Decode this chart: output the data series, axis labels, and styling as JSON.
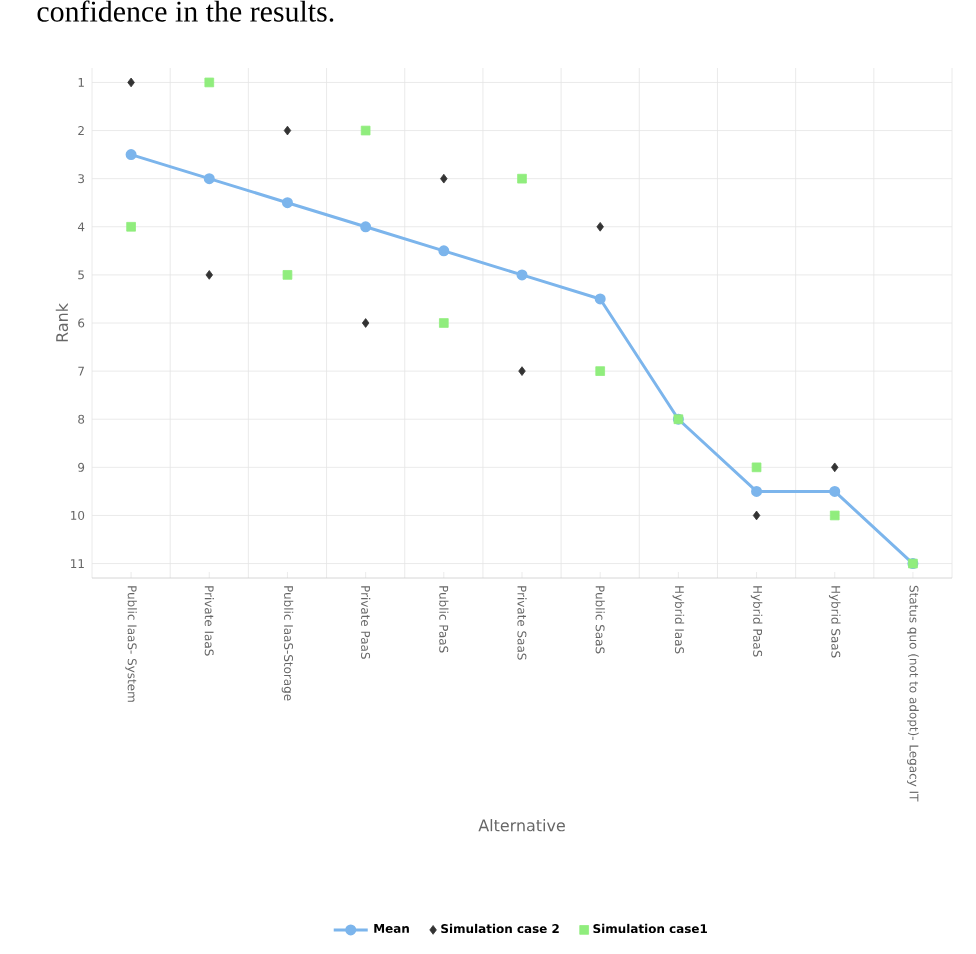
{
  "chart_data": {
    "type": "line",
    "xlabel": "Alternative",
    "ylabel": "Rank",
    "annotations": [
      "confidence in the results."
    ],
    "categories": [
      "Public IaaS- System",
      "Private IaaS",
      "Public IaaS-Storage",
      "Private PaaS",
      "Public PaaS",
      "Private SaaS",
      "Public SaaS",
      "Hybrid IaaS",
      "Hybrid PaaS",
      "Hybrid SaaS",
      "Status quo (not to adopt)- Legacy IT"
    ],
    "series": [
      {
        "name": "Mean",
        "color": "#7cb5ec",
        "marker": "circle",
        "values": [
          2.5,
          3,
          3.5,
          4,
          4.5,
          5,
          5.5,
          8,
          9.5,
          9.5,
          11
        ]
      },
      {
        "name": "Simulation case 2",
        "type": "scatter",
        "color": "#333333",
        "marker": "diamond",
        "values": [
          1,
          5,
          2,
          6,
          3,
          7,
          4,
          null,
          10,
          9,
          null
        ]
      },
      {
        "name": "Simulation case1",
        "type": "scatter",
        "color": "#90ed7d",
        "marker": "square",
        "values": [
          4,
          1,
          5,
          2,
          6,
          3,
          7,
          8,
          9,
          10,
          11
        ]
      }
    ],
    "ylim": [
      11.3,
      0.7
    ],
    "yticks": [
      1,
      2,
      3,
      4,
      5,
      6,
      7,
      8,
      9,
      10,
      11
    ],
    "grid": true,
    "legend": "bottom"
  }
}
